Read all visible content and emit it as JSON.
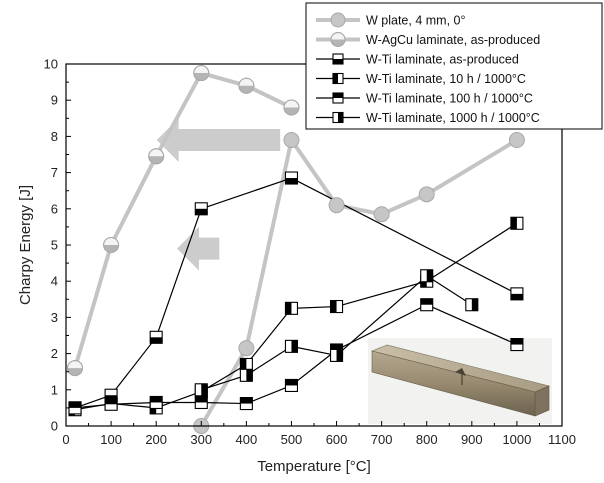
{
  "chart_data": {
    "type": "line",
    "xlabel": "Temperature [°C]",
    "ylabel": "Charpy Energy [J]",
    "xlim": [
      0,
      1100
    ],
    "ylim": [
      0,
      10
    ],
    "xticks": [
      0,
      100,
      200,
      300,
      400,
      500,
      600,
      700,
      800,
      900,
      1000,
      1100
    ],
    "yticks": [
      0,
      1,
      2,
      3,
      4,
      5,
      6,
      7,
      8,
      9,
      10
    ],
    "grid": false,
    "legend_position": "top-right",
    "series": [
      {
        "name": "W plate, 4 mm, 0°",
        "marker": "circle-full",
        "color": "#c0c0c0",
        "x": [
          300,
          400,
          500,
          600,
          700,
          800,
          1000
        ],
        "y": [
          0.0,
          2.15,
          7.9,
          6.1,
          5.85,
          6.4,
          7.9
        ]
      },
      {
        "name": "W-AgCu laminate, as-produced",
        "marker": "circle-half",
        "color": "#c0c0c0",
        "x": [
          20,
          100,
          200,
          300,
          400,
          500
        ],
        "y": [
          1.6,
          5.0,
          7.45,
          9.75,
          9.4,
          8.8
        ]
      },
      {
        "name": "W-Ti laminate, as-produced",
        "marker": "square-bottom",
        "color": "#000000",
        "x": [
          20,
          100,
          200,
          300,
          500,
          1000
        ],
        "y": [
          0.5,
          0.85,
          2.45,
          6.0,
          6.85,
          3.65
        ]
      },
      {
        "name": "W-Ti laminate, 10 h / 1000°C",
        "marker": "square-left",
        "color": "#000000",
        "x": [
          20,
          100,
          200,
          300,
          400,
          500,
          600,
          800,
          1000
        ],
        "y": [
          0.45,
          0.62,
          0.5,
          0.95,
          1.7,
          3.25,
          3.3,
          4.0,
          5.6
        ]
      },
      {
        "name": "W-Ti laminate, 100 h / 1000°C",
        "marker": "square-top",
        "color": "#000000",
        "x": [
          20,
          100,
          200,
          300,
          400,
          500,
          600,
          800,
          1000
        ],
        "y": [
          0.5,
          0.6,
          0.65,
          0.65,
          0.62,
          1.12,
          2.1,
          3.35,
          2.25
        ]
      },
      {
        "name": "W-Ti laminate, 1000 h / 1000°C",
        "marker": "square-right",
        "color": "#000000",
        "x": [
          300,
          400,
          500,
          600,
          800,
          900
        ],
        "y": [
          1.0,
          1.4,
          2.2,
          1.95,
          4.15,
          3.35
        ]
      }
    ],
    "annotations": [
      {
        "type": "arrow",
        "color": "#cccccc",
        "from": [
          475,
          7.9
        ],
        "to": [
          210,
          7.9
        ]
      },
      {
        "type": "arrow",
        "color": "#cccccc",
        "from": [
          340,
          4.9
        ],
        "to": [
          255,
          4.9
        ]
      },
      {
        "type": "inset-photo",
        "subject": "notched specimen"
      }
    ]
  }
}
